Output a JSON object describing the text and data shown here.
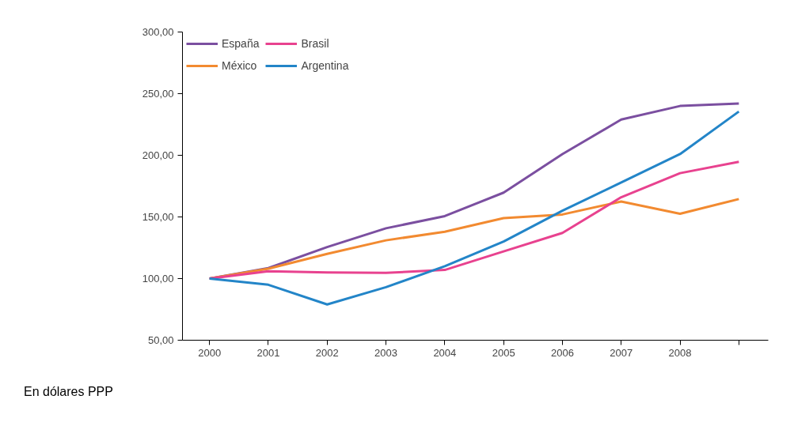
{
  "chart_data": {
    "type": "line",
    "categories": [
      "2000",
      "2001",
      "2002",
      "2003",
      "2004",
      "2005",
      "2006",
      "2007",
      "2008",
      null
    ],
    "series": [
      {
        "name": "España",
        "color": "#7b4fa0",
        "values": [
          100,
          108.5,
          125.6,
          140.8,
          150.7,
          169.7,
          201,
          229,
          240,
          242
        ]
      },
      {
        "name": "México",
        "color": "#f28a30",
        "values": [
          100,
          108,
          120,
          131,
          138,
          149,
          152,
          162.5,
          152.6,
          164.5
        ]
      },
      {
        "name": "Brasil",
        "color": "#e8428f",
        "values": [
          100,
          106,
          105,
          104.6,
          107,
          122,
          137,
          166,
          185.5,
          194.7
        ]
      },
      {
        "name": "Argentina",
        "color": "#2385c8",
        "values": [
          100,
          95,
          79,
          93,
          110,
          130,
          155,
          178,
          201,
          235.5
        ]
      }
    ],
    "ylim": [
      50,
      300
    ],
    "yticks": [
      {
        "value": 50,
        "label": "50,00"
      },
      {
        "value": 100,
        "label": "100,00"
      },
      {
        "value": 150,
        "label": "150,00"
      },
      {
        "value": 200,
        "label": "200,00"
      },
      {
        "value": 250,
        "label": "250,00"
      },
      {
        "value": 300,
        "label": "300,00"
      }
    ],
    "grid": false,
    "legend": "top left",
    "marker": "none",
    "line_style": "solid",
    "annotations": [
      "En dólares PPP"
    ]
  }
}
